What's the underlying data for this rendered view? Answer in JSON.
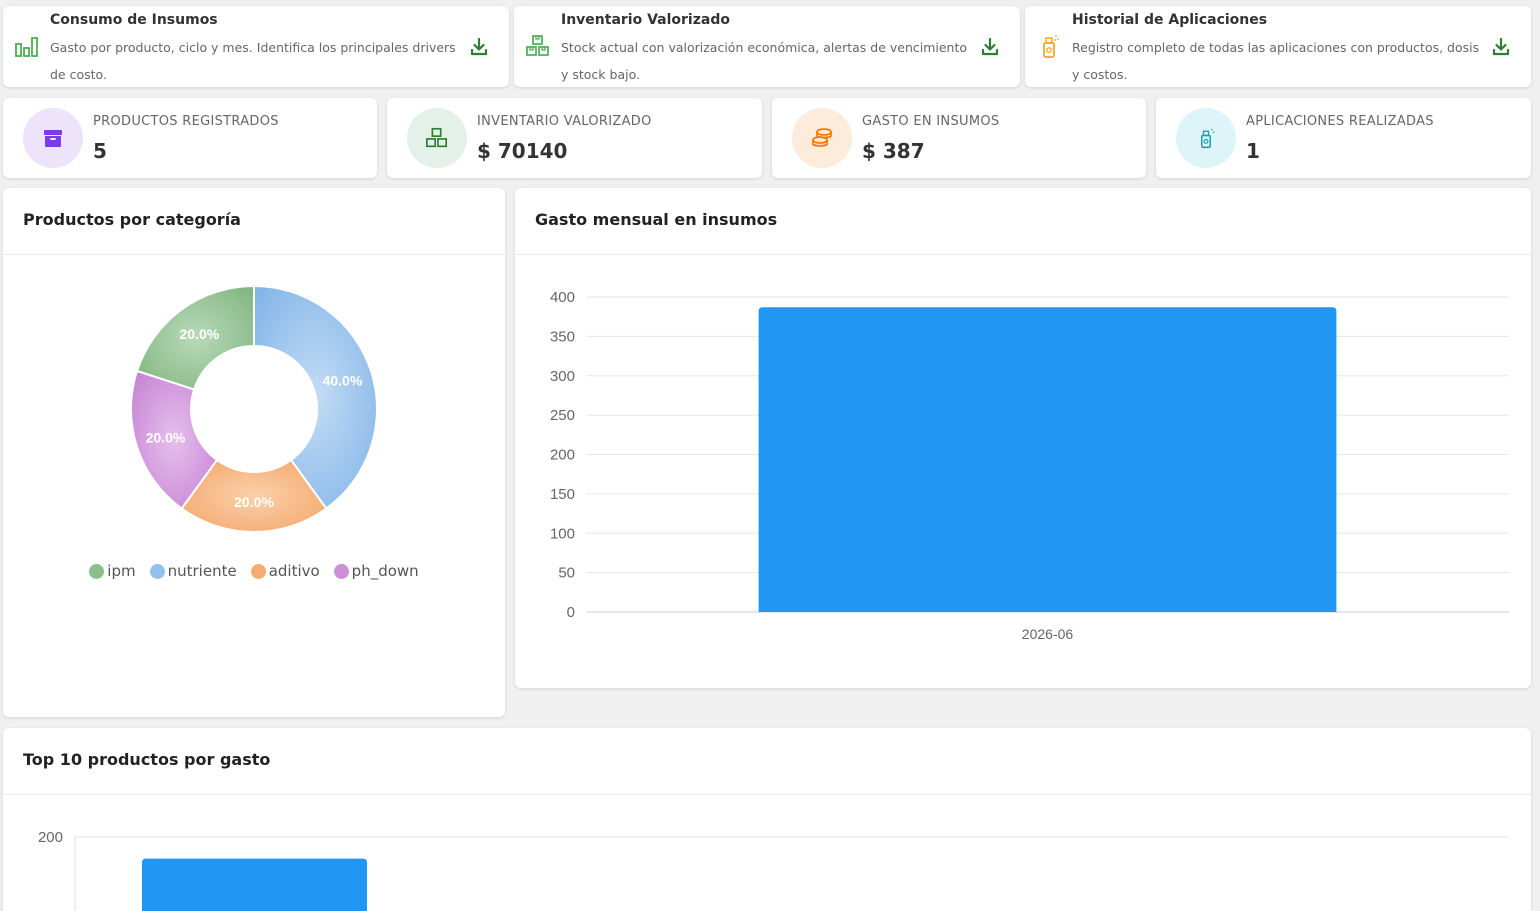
{
  "reports": [
    {
      "title": "Consumo de Insumos",
      "desc": "Gasto por producto, ciclo y mes. Identifica los principales drivers de costo.",
      "icon": "bar-chart-icon",
      "icon_color": "#4caf50"
    },
    {
      "title": "Inventario Valorizado",
      "desc": "Stock actual con valorización económica, alertas de vencimiento y stock bajo.",
      "icon": "boxes-icon",
      "icon_color": "#4caf50"
    },
    {
      "title": "Historial de Aplicaciones",
      "desc": "Registro completo de todas las aplicaciones con productos, dosis y costos.",
      "icon": "spray-bottle-icon",
      "icon_color": "#f5a623"
    }
  ],
  "download_icon_color": "#2e7d32",
  "stats": [
    {
      "label": "PRODUCTOS REGISTRADOS",
      "value": "5",
      "icon": "archive-box-icon",
      "bg": "#ede3fb",
      "color": "#7c3aed"
    },
    {
      "label": "INVENTARIO VALORIZADO",
      "value": "$ 70140",
      "icon": "boxes-icon",
      "bg": "#e3f1e8",
      "color": "#2e7d32"
    },
    {
      "label": "GASTO EN INSUMOS",
      "value": "$ 387",
      "icon": "coins-icon",
      "bg": "#fdebdc",
      "color": "#f57c00"
    },
    {
      "label": "APLICACIONES REALIZADAS",
      "value": "1",
      "icon": "spray-bottle-icon",
      "bg": "#ddf4f9",
      "color": "#17a2b8"
    }
  ],
  "panels": {
    "categories": {
      "title": "Productos por categoría"
    },
    "monthly": {
      "title": "Gasto mensual en insumos"
    },
    "top10": {
      "title": "Top 10 productos por gasto"
    }
  },
  "chart_data": [
    {
      "type": "pie",
      "title": "Productos por categoría",
      "labels": [
        "ipm",
        "nutriente",
        "aditivo",
        "ph_down"
      ],
      "values": [
        20,
        40,
        20,
        20
      ],
      "data_labels": [
        "20.0%",
        "40.0%",
        "20.0%",
        "20.0%"
      ],
      "colors": [
        "#8cbf8c",
        "#94c1ec",
        "#f4ac74",
        "#cc8fd8"
      ],
      "legend": "bottom"
    },
    {
      "type": "bar",
      "title": "Gasto mensual en insumos",
      "categories": [
        "2026-06"
      ],
      "values": [
        387
      ],
      "ylim": [
        0,
        400
      ],
      "yticks": [
        0,
        50,
        100,
        150,
        200,
        250,
        300,
        350,
        400
      ],
      "color": "#2196f3",
      "grid": true
    },
    {
      "type": "bar",
      "title": "Top 10 productos por gasto",
      "values": [
        190
      ],
      "yticks_visible": [
        200
      ],
      "color": "#2196f3",
      "grid": true
    }
  ]
}
